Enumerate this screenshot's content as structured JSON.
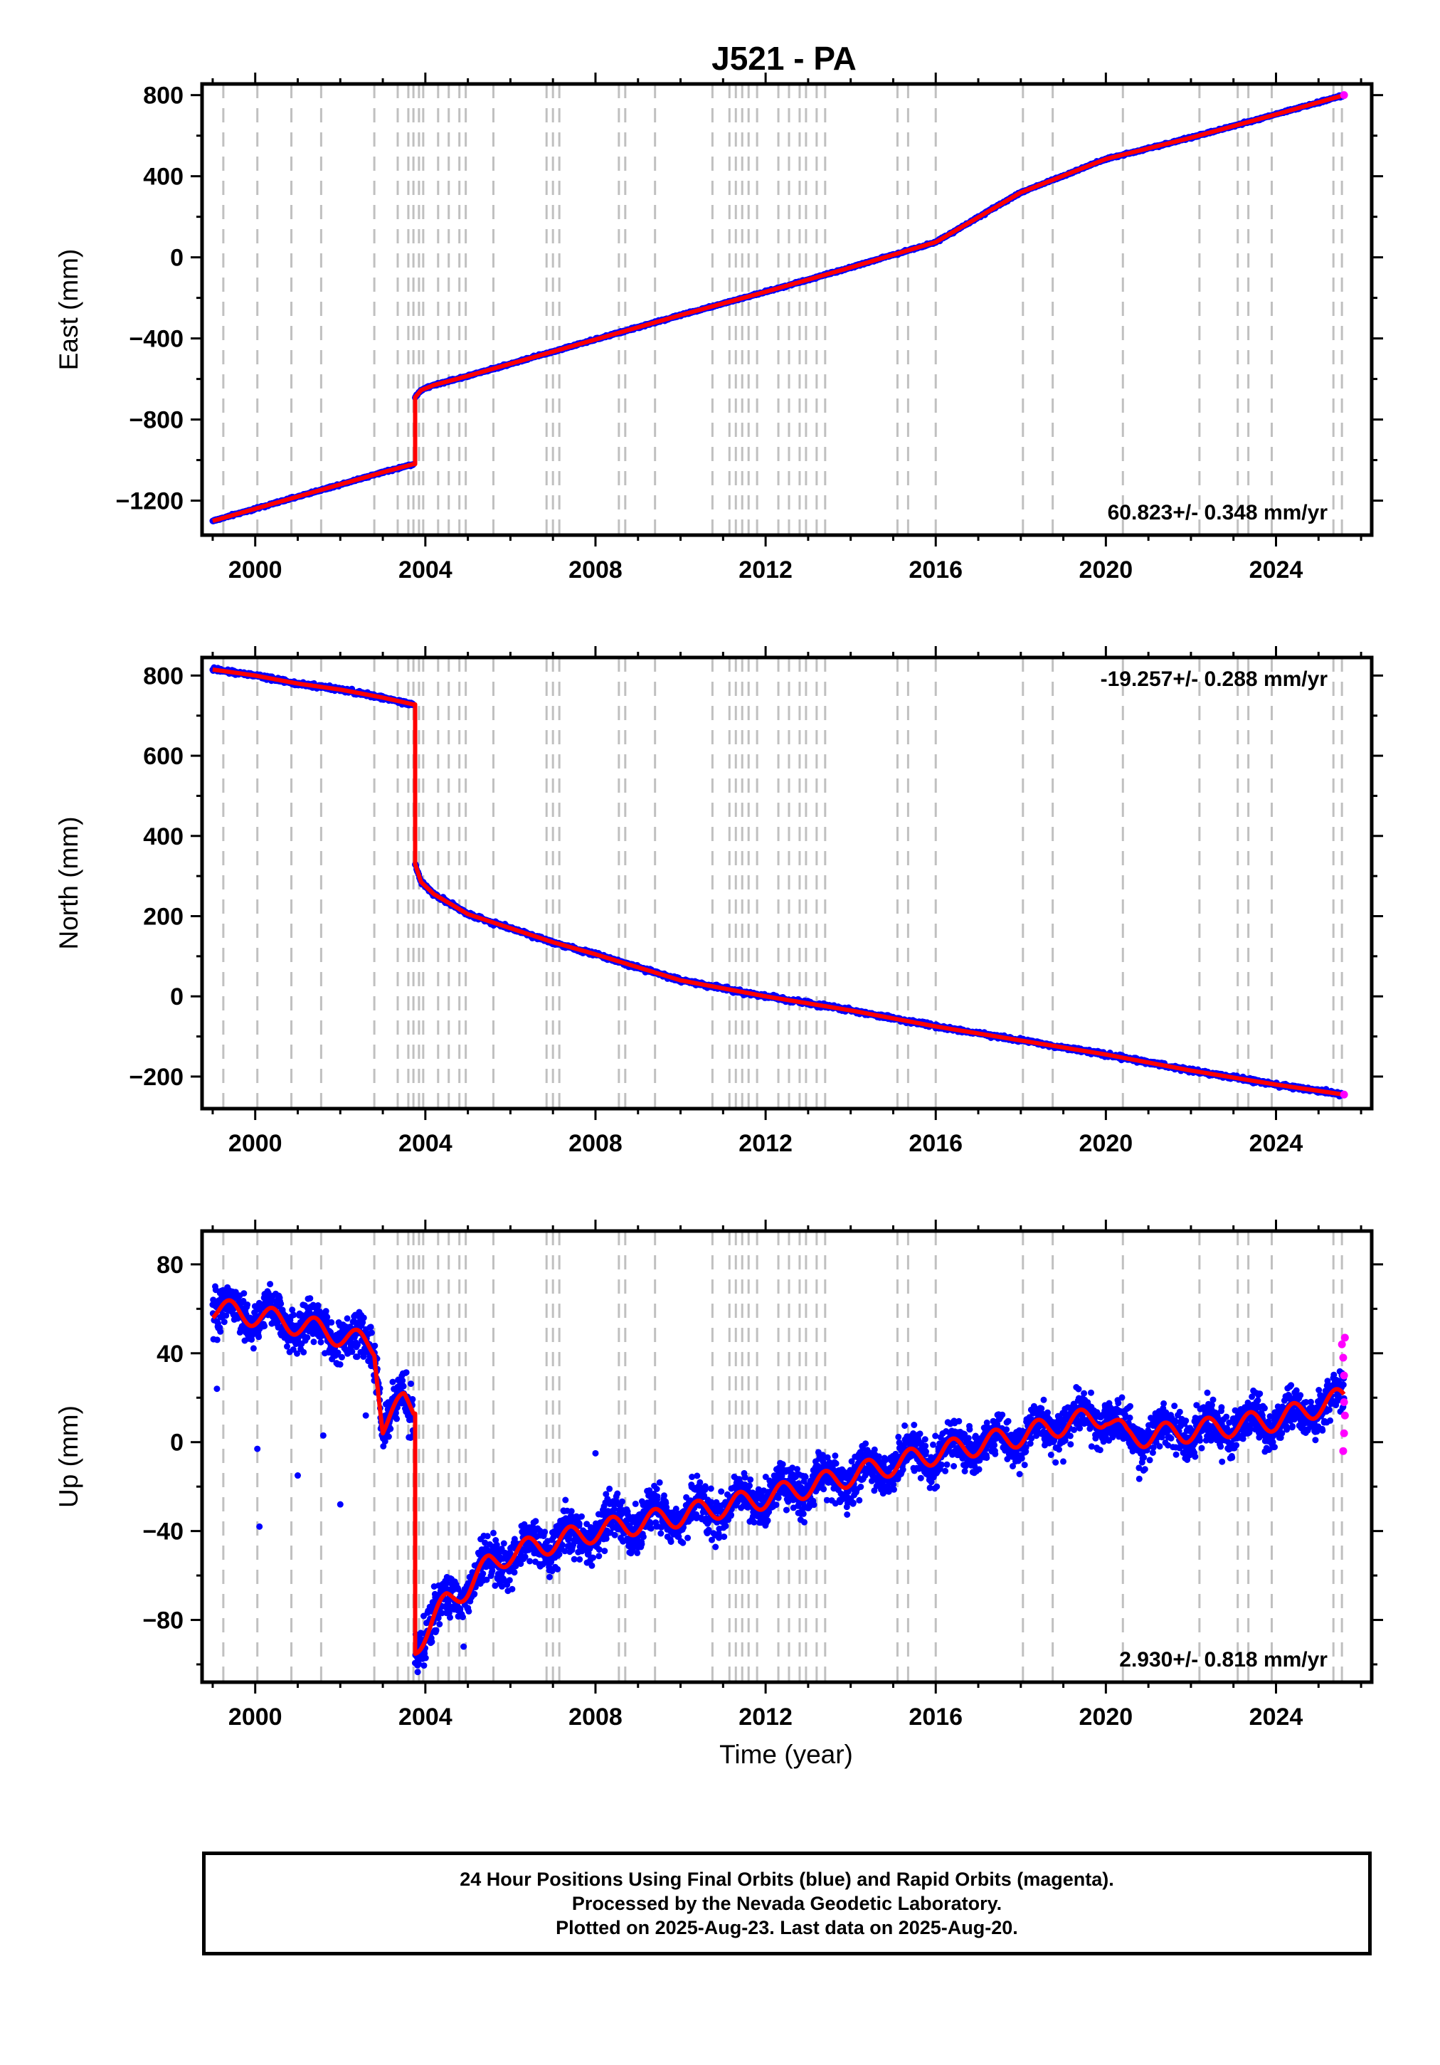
{
  "figure_title": "J521 - PA",
  "xlabel": "Time (year)",
  "footer": {
    "line1": "24 Hour Positions Using Final Orbits (blue) and Rapid Orbits (magenta).",
    "line2": "Processed by the Nevada Geodetic Laboratory.",
    "line3": "Plotted on 2025-Aug-23. Last data on 2025-Aug-20."
  },
  "colors": {
    "final": "#0000ff",
    "rapid": "#ff00ff",
    "model": "#ff0000",
    "steps": "#c0c0c0"
  },
  "chart_data": [
    {
      "type": "scatter",
      "component": "east",
      "ylabel": "East (mm)",
      "velocity_label": "60.823+/- 0.348 mm/yr",
      "velocity_position": "bottom-right",
      "xlim": [
        1998.75,
        2026.25
      ],
      "ylim": [
        -1370,
        855
      ],
      "xticks": [
        2000,
        2004,
        2008,
        2012,
        2016,
        2020,
        2024
      ],
      "yticks": [
        -1200,
        -800,
        -400,
        0,
        400,
        800
      ],
      "ytick_labels": [
        "−1200",
        "−800",
        "−400",
        "0",
        "400",
        "800"
      ],
      "series": [
        {
          "segment": "pre",
          "x": [
            1999.0,
            2000.0,
            2001.0,
            2002.0,
            2003.0,
            2003.72
          ],
          "y": [
            -1300,
            -1240,
            -1180,
            -1120,
            -1060,
            -1020
          ]
        },
        {
          "segment": "post",
          "x": [
            2003.76,
            2003.9,
            2004.2,
            2005.0,
            2006.0,
            2008.0,
            2010.0,
            2012.0,
            2014.0,
            2016.0,
            2018.0,
            2020.0,
            2022.0,
            2024.0,
            2025.6
          ],
          "y": [
            -690,
            -655,
            -630,
            -585,
            -525,
            -405,
            -285,
            -170,
            -50,
            75,
            320,
            485,
            590,
            705,
            800
          ]
        }
      ],
      "rapid_points": [
        {
          "x": 2025.6,
          "y": 800
        }
      ]
    },
    {
      "type": "scatter",
      "component": "north",
      "ylabel": "North (mm)",
      "velocity_label": "-19.257+/- 0.288 mm/yr",
      "velocity_position": "top-right",
      "xlim": [
        1998.75,
        2026.25
      ],
      "ylim": [
        -280,
        845
      ],
      "xticks": [
        2000,
        2004,
        2008,
        2012,
        2016,
        2020,
        2024
      ],
      "yticks": [
        -200,
        0,
        200,
        400,
        600,
        800
      ],
      "ytick_labels": [
        "−200",
        "0",
        "200",
        "400",
        "600",
        "800"
      ],
      "series": [
        {
          "segment": "pre",
          "x": [
            1999.0,
            2000.0,
            2001.0,
            2002.0,
            2003.0,
            2003.72
          ],
          "y": [
            815,
            800,
            780,
            765,
            745,
            728
          ]
        },
        {
          "segment": "post",
          "x": [
            2003.76,
            2003.9,
            2004.2,
            2004.6,
            2005.0,
            2006.0,
            2007.0,
            2008.0,
            2010.0,
            2012.0,
            2014.0,
            2016.0,
            2018.0,
            2020.0,
            2022.0,
            2024.0,
            2025.6
          ],
          "y": [
            330,
            285,
            255,
            230,
            205,
            170,
            135,
            105,
            40,
            0,
            -35,
            -75,
            -110,
            -145,
            -185,
            -220,
            -245
          ]
        }
      ],
      "rapid_points": [
        {
          "x": 2025.6,
          "y": -245
        }
      ]
    },
    {
      "type": "scatter",
      "component": "up",
      "ylabel": "Up (mm)",
      "velocity_label": "2.930+/- 0.818 mm/yr",
      "velocity_position": "bottom-right",
      "xlim": [
        1998.75,
        2026.25
      ],
      "ylim": [
        -108,
        95
      ],
      "xticks": [
        2000,
        2004,
        2008,
        2012,
        2016,
        2020,
        2024
      ],
      "yticks": [
        -80,
        -40,
        0,
        40,
        80
      ],
      "ytick_labels": [
        "−80",
        "−40",
        "0",
        "40",
        "80"
      ],
      "series": [
        {
          "segment": "pre",
          "x": [
            1999.0,
            2000.0,
            2001.0,
            2002.0,
            2002.8,
            2003.0,
            2003.5,
            2003.72
          ],
          "y": [
            60,
            57,
            53,
            48,
            43,
            8,
            18,
            15
          ]
        },
        {
          "segment": "post",
          "x": [
            2003.76,
            2004.0,
            2004.5,
            2005.0,
            2005.5,
            2006.0,
            2007.0,
            2008.0,
            2010.0,
            2012.0,
            2014.0,
            2016.0,
            2018.0,
            2019.0,
            2020.0,
            2020.5,
            2022.0,
            2024.0,
            2025.6
          ],
          "y": [
            -92,
            -85,
            -72,
            -65,
            -55,
            -50,
            -45,
            -40,
            -33,
            -25,
            -15,
            -5,
            3,
            8,
            12,
            2,
            5,
            10,
            20
          ]
        }
      ],
      "rapid_points": [
        {
          "x": 2025.55,
          "y": 44
        },
        {
          "x": 2025.58,
          "y": 38
        },
        {
          "x": 2025.6,
          "y": 30
        },
        {
          "x": 2025.6,
          "y": 18
        },
        {
          "x": 2025.62,
          "y": 12
        },
        {
          "x": 2025.6,
          "y": 4
        },
        {
          "x": 2025.58,
          "y": -4
        },
        {
          "x": 2025.62,
          "y": 47
        }
      ]
    }
  ],
  "step_epochs": [
    1999.25,
    2000.05,
    2000.85,
    2001.55,
    2002.8,
    2003.35,
    2003.6,
    2003.72,
    2003.85,
    2003.95,
    2004.3,
    2004.55,
    2004.8,
    2004.95,
    2005.6,
    2006.85,
    2007.0,
    2007.15,
    2008.55,
    2008.7,
    2009.4,
    2010.75,
    2011.15,
    2011.3,
    2011.45,
    2011.6,
    2011.8,
    2012.3,
    2012.55,
    2012.8,
    2012.95,
    2013.2,
    2013.4,
    2015.1,
    2015.35,
    2016.0,
    2018.05,
    2018.75,
    2020.4,
    2022.2,
    2023.1,
    2023.35,
    2023.9,
    2025.35,
    2025.55
  ]
}
